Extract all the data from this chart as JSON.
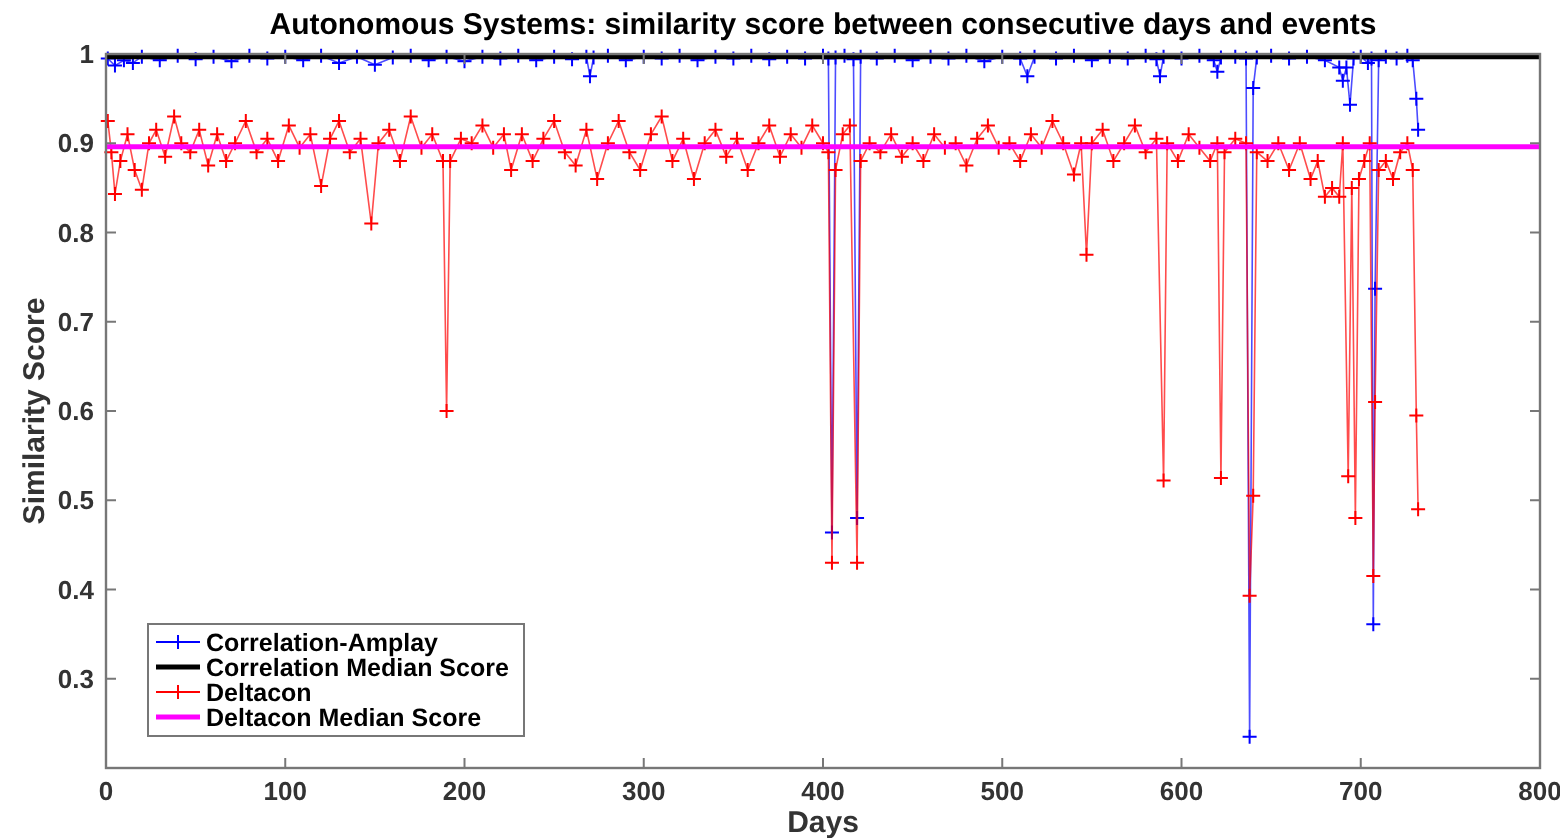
{
  "chart_data": {
    "type": "line",
    "title": "Autonomous Systems: similarity score between consecutive days and events",
    "xlabel": "Days",
    "ylabel": "Similarity Score",
    "xlim": [
      0,
      800
    ],
    "xticks": [
      0,
      100,
      200,
      300,
      400,
      500,
      600,
      700,
      800
    ],
    "ylim": [
      0.2,
      1
    ],
    "yticks": [
      0.3,
      0.4,
      0.5,
      0.6,
      0.7,
      0.8,
      0.9,
      1
    ],
    "grid": false,
    "legend": "bottom left",
    "line_style": "solid",
    "series": [
      {
        "name": "Correlation-Amplay",
        "color": "#0000ff",
        "marker": "cross",
        "x": [
          1,
          5,
          10,
          15,
          20,
          30,
          40,
          50,
          60,
          70,
          80,
          90,
          100,
          110,
          120,
          130,
          140,
          150,
          160,
          170,
          180,
          190,
          200,
          210,
          220,
          230,
          240,
          250,
          260,
          268,
          270,
          272,
          280,
          290,
          300,
          310,
          320,
          330,
          340,
          350,
          360,
          370,
          380,
          390,
          400,
          403,
          405,
          407,
          412,
          417,
          419,
          421,
          430,
          440,
          450,
          460,
          470,
          480,
          490,
          500,
          510,
          514,
          518,
          530,
          540,
          550,
          560,
          570,
          580,
          586,
          588,
          590,
          600,
          610,
          618,
          620,
          622,
          630,
          636,
          638,
          640,
          642,
          650,
          660,
          670,
          680,
          688,
          690,
          692,
          694,
          696,
          700,
          704,
          706,
          707,
          708,
          710,
          714,
          720,
          726,
          729,
          731,
          732
        ],
        "values": [
          0.995,
          0.987,
          0.993,
          0.99,
          0.997,
          0.993,
          0.998,
          0.994,
          0.997,
          0.992,
          0.998,
          0.995,
          0.997,
          0.993,
          0.998,
          0.99,
          0.997,
          0.988,
          0.996,
          0.998,
          0.993,
          0.997,
          0.992,
          0.997,
          0.995,
          0.998,
          0.993,
          0.997,
          0.994,
          0.997,
          0.975,
          0.996,
          0.998,
          0.993,
          0.997,
          0.995,
          0.998,
          0.993,
          0.997,
          0.995,
          0.998,
          0.994,
          0.997,
          0.995,
          0.998,
          0.995,
          0.464,
          0.996,
          0.998,
          0.994,
          0.48,
          0.997,
          0.995,
          0.998,
          0.993,
          0.997,
          0.995,
          0.998,
          0.992,
          0.997,
          0.995,
          0.975,
          0.997,
          0.995,
          0.998,
          0.993,
          0.997,
          0.995,
          0.998,
          0.994,
          0.975,
          0.997,
          0.995,
          0.998,
          0.993,
          0.98,
          0.996,
          0.997,
          0.995,
          0.235,
          0.962,
          0.996,
          0.998,
          0.995,
          0.997,
          0.993,
          0.985,
          0.97,
          0.985,
          0.943,
          0.995,
          0.997,
          0.99,
          0.995,
          0.361,
          0.737,
          0.993,
          0.997,
          0.995,
          0.998,
          0.993,
          0.95,
          0.915
        ]
      },
      {
        "name": "Correlation Median Score",
        "color": "#000000",
        "marker": "none",
        "x": [
          0,
          800
        ],
        "values": [
          0.997,
          0.997
        ]
      },
      {
        "name": "Deltacon",
        "color": "#ff0000",
        "marker": "cross",
        "x": [
          1,
          3,
          5,
          8,
          12,
          16,
          20,
          24,
          28,
          33,
          38,
          42,
          47,
          52,
          57,
          62,
          67,
          72,
          78,
          84,
          90,
          96,
          102,
          108,
          114,
          120,
          125,
          130,
          136,
          142,
          148,
          152,
          158,
          164,
          170,
          176,
          182,
          188,
          190,
          192,
          198,
          204,
          210,
          216,
          222,
          226,
          232,
          238,
          244,
          250,
          256,
          262,
          268,
          274,
          280,
          286,
          292,
          298,
          304,
          310,
          316,
          322,
          328,
          334,
          340,
          346,
          352,
          358,
          364,
          370,
          376,
          382,
          388,
          394,
          400,
          403,
          405,
          407,
          411,
          415,
          419,
          421,
          426,
          432,
          438,
          444,
          450,
          456,
          462,
          468,
          474,
          480,
          486,
          492,
          498,
          504,
          510,
          516,
          522,
          528,
          534,
          540,
          544,
          547,
          550,
          556,
          562,
          568,
          574,
          580,
          586,
          590,
          592,
          598,
          604,
          610,
          616,
          620,
          622,
          624,
          630,
          636,
          638,
          640,
          642,
          648,
          654,
          660,
          666,
          672,
          676,
          680,
          684,
          688,
          690,
          693,
          695,
          697,
          699,
          702,
          705,
          707,
          708,
          710,
          714,
          718,
          722,
          726,
          729,
          731,
          732
        ],
        "values": [
          0.925,
          0.89,
          0.843,
          0.88,
          0.91,
          0.87,
          0.848,
          0.9,
          0.915,
          0.885,
          0.93,
          0.9,
          0.89,
          0.915,
          0.875,
          0.91,
          0.88,
          0.9,
          0.925,
          0.89,
          0.905,
          0.88,
          0.92,
          0.895,
          0.91,
          0.852,
          0.905,
          0.925,
          0.89,
          0.905,
          0.81,
          0.9,
          0.915,
          0.88,
          0.93,
          0.895,
          0.91,
          0.88,
          0.6,
          0.88,
          0.905,
          0.9,
          0.92,
          0.895,
          0.91,
          0.87,
          0.91,
          0.88,
          0.905,
          0.925,
          0.89,
          0.875,
          0.915,
          0.86,
          0.9,
          0.925,
          0.89,
          0.87,
          0.91,
          0.93,
          0.88,
          0.905,
          0.86,
          0.9,
          0.915,
          0.885,
          0.905,
          0.87,
          0.9,
          0.92,
          0.885,
          0.91,
          0.895,
          0.92,
          0.9,
          0.89,
          0.43,
          0.87,
          0.91,
          0.92,
          0.43,
          0.88,
          0.9,
          0.89,
          0.91,
          0.885,
          0.9,
          0.88,
          0.91,
          0.895,
          0.9,
          0.875,
          0.905,
          0.92,
          0.895,
          0.9,
          0.88,
          0.91,
          0.895,
          0.925,
          0.9,
          0.865,
          0.9,
          0.775,
          0.9,
          0.915,
          0.88,
          0.9,
          0.92,
          0.89,
          0.905,
          0.522,
          0.9,
          0.88,
          0.91,
          0.895,
          0.88,
          0.9,
          0.525,
          0.89,
          0.905,
          0.9,
          0.393,
          0.505,
          0.89,
          0.88,
          0.9,
          0.87,
          0.9,
          0.86,
          0.88,
          0.84,
          0.85,
          0.84,
          0.9,
          0.527,
          0.85,
          0.48,
          0.86,
          0.88,
          0.9,
          0.415,
          0.61,
          0.87,
          0.88,
          0.86,
          0.89,
          0.9,
          0.87,
          0.595,
          0.49
        ]
      },
      {
        "name": "Deltacon Median Score",
        "color": "#ff00ff",
        "marker": "none",
        "x": [
          0,
          800
        ],
        "values": [
          0.896,
          0.896
        ]
      }
    ]
  }
}
